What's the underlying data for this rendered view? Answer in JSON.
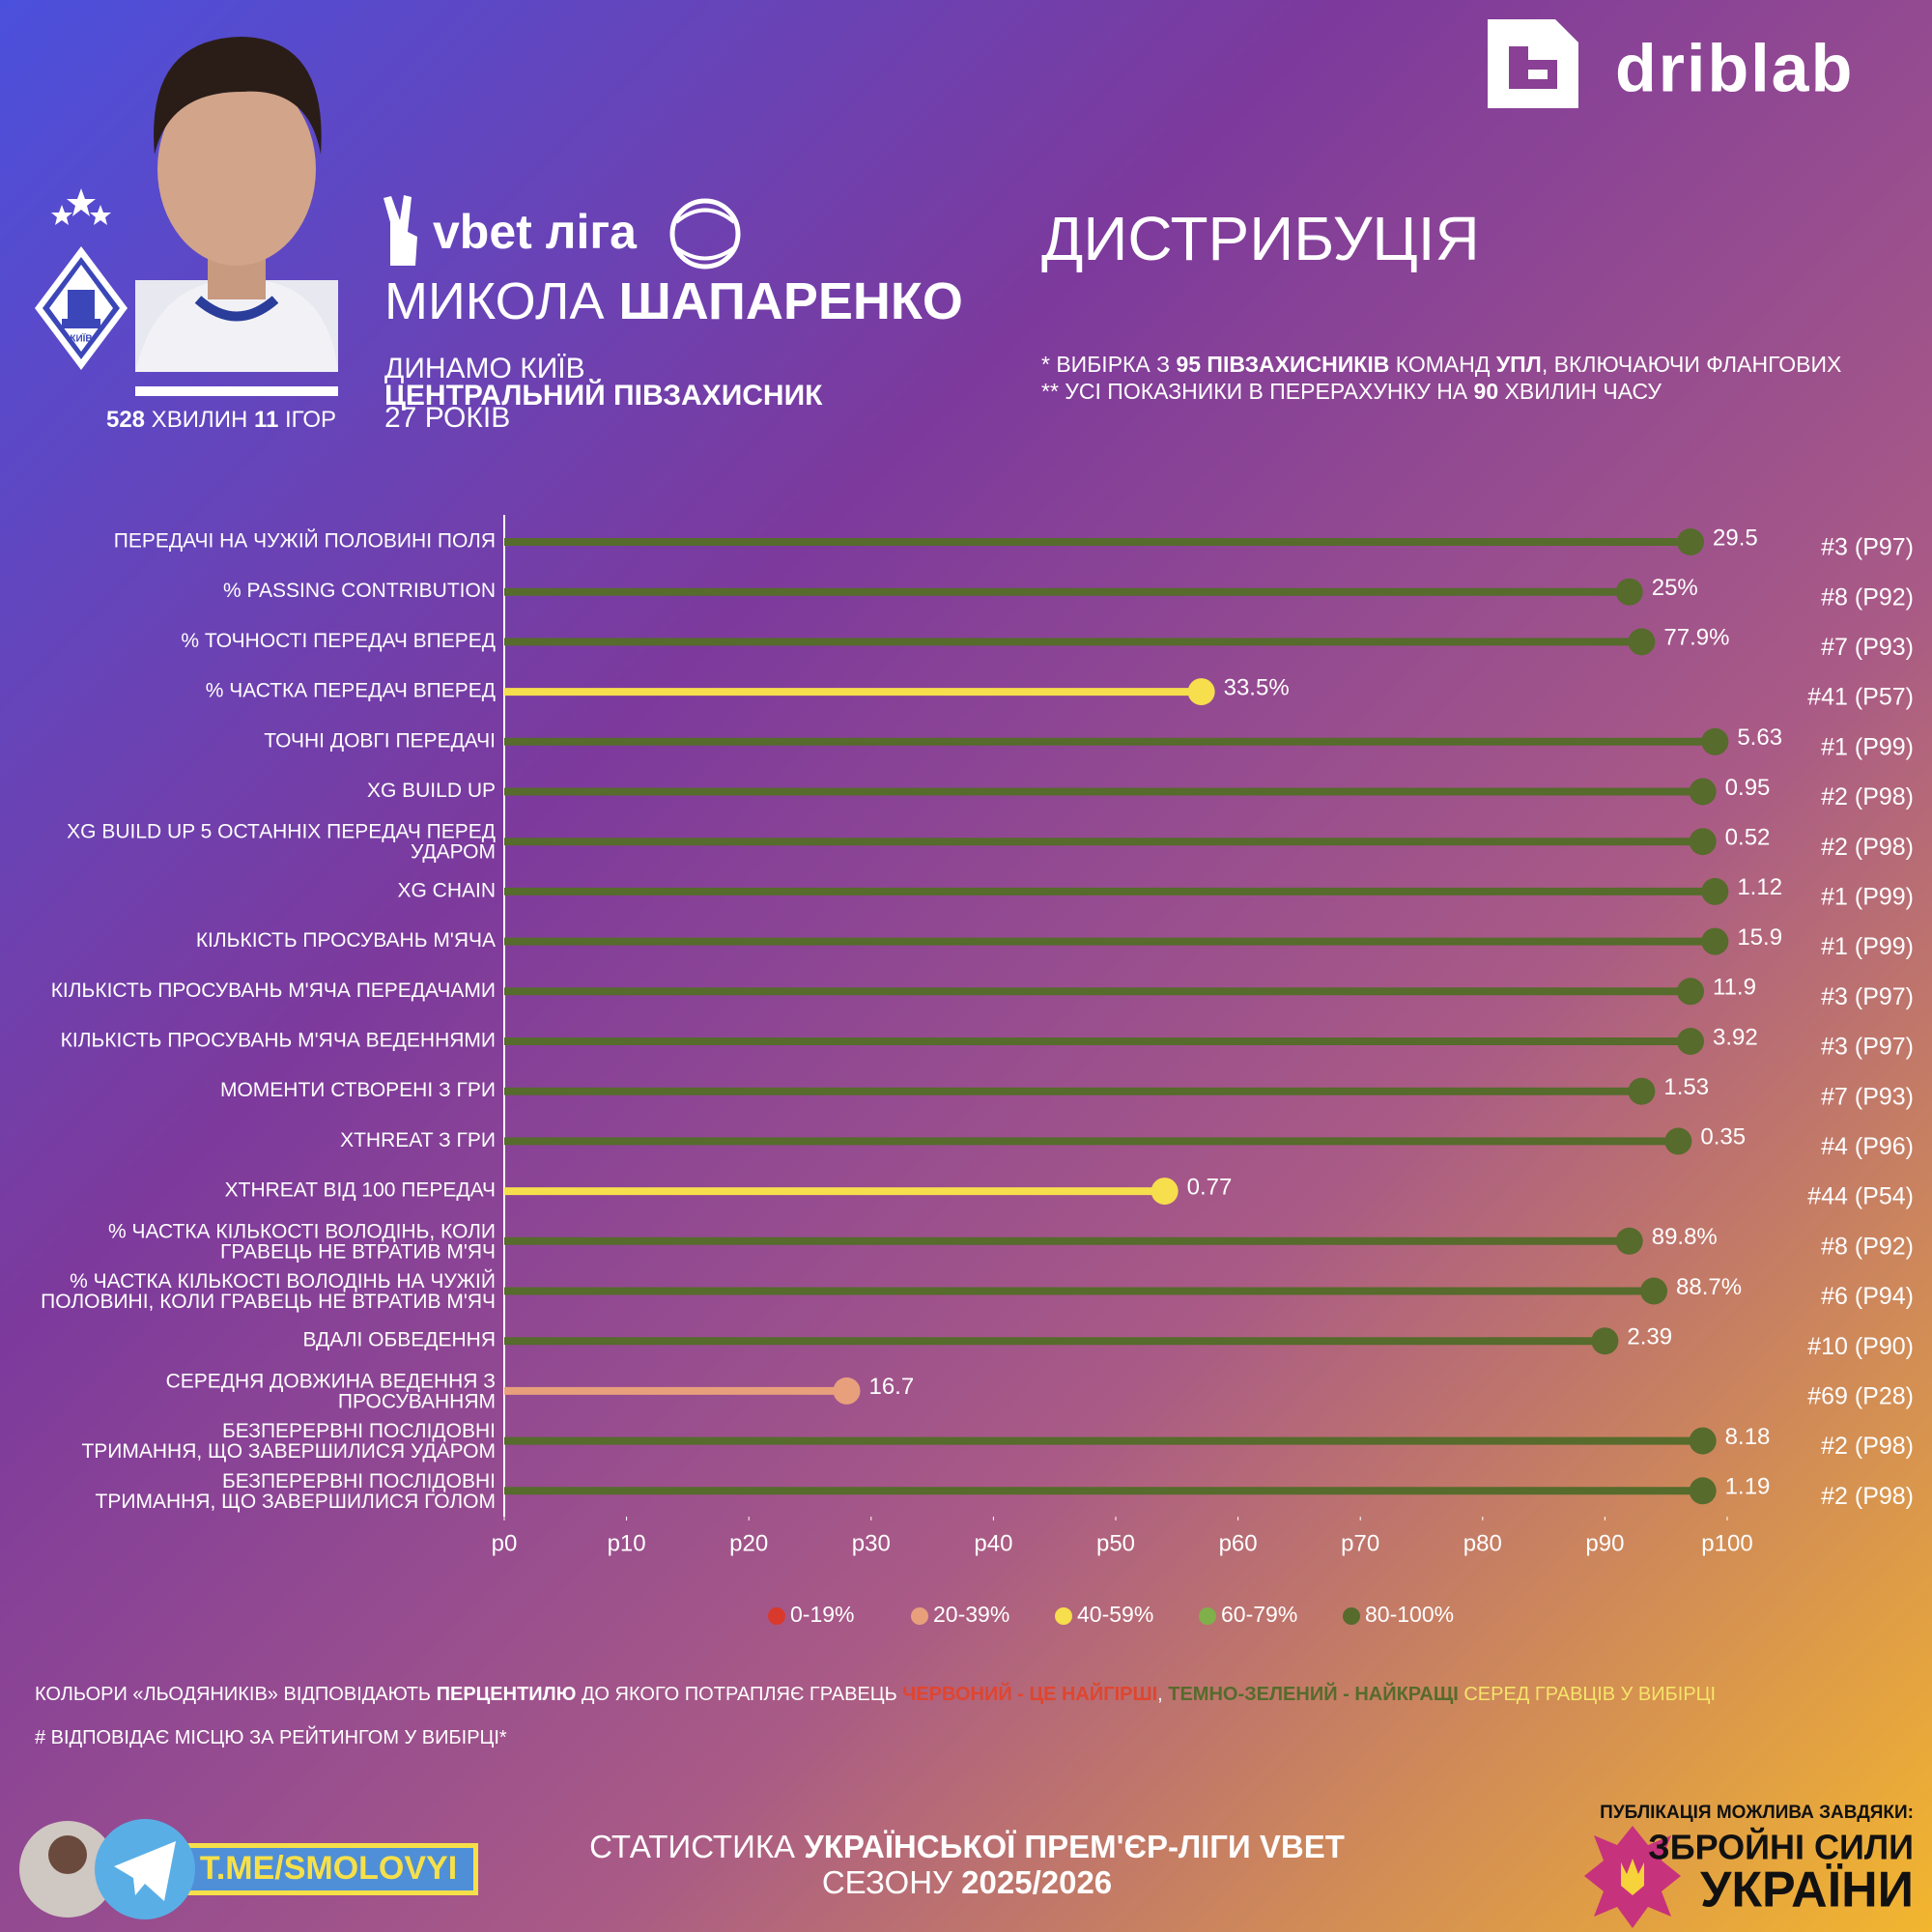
{
  "header": {
    "brand": "driblab",
    "league": "vbet ліга",
    "logo_text": "КИЇВ",
    "minutes": [
      {
        "text": "528",
        "bold": true
      },
      {
        "text": " ХВИЛИН "
      },
      {
        "text": "11",
        "bold": true
      },
      {
        "text": " ІГОР"
      }
    ],
    "player": [
      {
        "text": "МИКОЛА "
      },
      {
        "text": "ШАПАРЕНКО",
        "bold": true
      }
    ],
    "team": "ДИНАМО КИЇВ",
    "position": "ЦЕНТРАЛЬНИЙ ПІВЗАХИСНИК",
    "age": "27 РОКІВ",
    "section": "ДИСТРИБУЦІЯ",
    "notes": [
      [
        {
          "text": "* ВИБІРКА З "
        },
        {
          "text": "95 ПІВЗАХИСНИКІВ",
          "bold": true
        },
        {
          "text": " КОМАНД "
        },
        {
          "text": "УПЛ",
          "bold": true
        },
        {
          "text": ", ВКЛЮЧАЮЧИ ФЛАНГОВИХ"
        }
      ],
      [
        {
          "text": "** УСІ ПОКАЗНИКИ В ПЕРЕРАХУНКУ НА "
        },
        {
          "text": "90",
          "bold": true
        },
        {
          "text": " ХВИЛИН ЧАСУ"
        }
      ]
    ]
  },
  "chart_data": {
    "type": "lollipop",
    "categories": [
      [
        "ПЕРЕДАЧІ НА ЧУЖІЙ ПОЛОВИНІ ПОЛЯ"
      ],
      [
        "% PASSING CONTRIBUTION"
      ],
      [
        "% ТОЧНОСТІ ПЕРЕДАЧ ВПЕРЕД"
      ],
      [
        "% ЧАСТКА ПЕРЕДАЧ ВПЕРЕД"
      ],
      [
        "ТОЧНІ ДОВГІ ПЕРЕДАЧІ"
      ],
      [
        "XG BUILD UP"
      ],
      [
        "XG BUILD UP 5 ОСТАННІХ ПЕРЕДАЧ ПЕРЕД",
        "УДАРОМ"
      ],
      [
        "XG CHAIN"
      ],
      [
        "КІЛЬКІСТЬ ПРОСУВАНЬ М'ЯЧА"
      ],
      [
        "КІЛЬКІСТЬ ПРОСУВАНЬ М'ЯЧА ПЕРЕДАЧАМИ"
      ],
      [
        "КІЛЬКІСТЬ ПРОСУВАНЬ М'ЯЧА ВЕДЕННЯМИ"
      ],
      [
        "МОМЕНТИ СТВОРЕНІ З ГРИ"
      ],
      [
        "XTHREAT З ГРИ"
      ],
      [
        "XTHREAT ВІД 100 ПЕРЕДАЧ"
      ],
      [
        "% ЧАСТКА КІЛЬКОСТІ ВОЛОДІНЬ, КОЛИ",
        "ГРАВЕЦЬ НЕ ВТРАТИВ М'ЯЧ"
      ],
      [
        "% ЧАСТКА КІЛЬКОСТІ ВОЛОДІНЬ НА ЧУЖІЙ",
        "ПОЛОВИНІ, КОЛИ ГРАВЕЦЬ НЕ ВТРАТИВ М'ЯЧ"
      ],
      [
        "ВДАЛІ ОБВЕДЕННЯ"
      ],
      [
        "СЕРЕДНЯ ДОВЖИНА ВЕДЕННЯ З",
        "ПРОСУВАННЯМ"
      ],
      [
        "БЕЗПЕРЕРВНІ ПОСЛІДОВНІ",
        "ТРИМАННЯ, ЩО ЗАВЕРШИЛИСЯ УДАРОМ"
      ],
      [
        "БЕЗПЕРЕРВНІ ПОСЛІДОВНІ",
        "ТРИМАННЯ, ЩО ЗАВЕРШИЛИСЯ ГОЛОМ"
      ]
    ],
    "values": [
      97,
      92,
      93,
      57,
      99,
      98,
      98,
      99,
      99,
      97,
      97,
      93,
      96,
      54,
      92,
      94,
      90,
      28,
      98,
      98
    ],
    "stat_labels": [
      "29.5",
      "25%",
      "77.9%",
      "33.5%",
      "5.63",
      "0.95",
      "0.52",
      "1.12",
      "15.9",
      "11.9",
      "3.92",
      "1.53",
      "0.35",
      "0.77",
      "89.8%",
      "88.7%",
      "2.39",
      "16.7",
      "8.18",
      "1.19"
    ],
    "rank_labels": [
      "#3 (P97)",
      "#8 (P92)",
      "#7 (P93)",
      "#41 (P57)",
      "#1 (P99)",
      "#2 (P98)",
      "#2 (P98)",
      "#1 (P99)",
      "#1 (P99)",
      "#3 (P97)",
      "#3 (P97)",
      "#7 (P93)",
      "#4 (P96)",
      "#44 (P54)",
      "#8 (P92)",
      "#6 (P94)",
      "#10 (P90)",
      "#69 (P28)",
      "#2 (P98)",
      "#2 (P98)"
    ],
    "colors": [
      "#566b2c",
      "#566b2c",
      "#566b2c",
      "#f6de4c",
      "#566b2c",
      "#566b2c",
      "#566b2c",
      "#566b2c",
      "#566b2c",
      "#566b2c",
      "#566b2c",
      "#566b2c",
      "#566b2c",
      "#f6de4c",
      "#566b2c",
      "#566b2c",
      "#566b2c",
      "#e8a07c",
      "#566b2c",
      "#566b2c"
    ],
    "xlim": [
      0,
      100
    ],
    "xticks": [
      {
        "value": 0,
        "label": "p0"
      },
      {
        "value": 10,
        "label": "p10"
      },
      {
        "value": 20,
        "label": "p20"
      },
      {
        "value": 30,
        "label": "p30"
      },
      {
        "value": 40,
        "label": "p40"
      },
      {
        "value": 50,
        "label": "p50"
      },
      {
        "value": 60,
        "label": "p60"
      },
      {
        "value": 70,
        "label": "p70"
      },
      {
        "value": 80,
        "label": "p80"
      },
      {
        "value": 90,
        "label": "p90"
      },
      {
        "value": 100,
        "label": "p100"
      }
    ],
    "legend": [
      {
        "label": "0-19%",
        "color": "#d9392b"
      },
      {
        "label": "20-39%",
        "color": "#e8a07c"
      },
      {
        "label": "40-59%",
        "color": "#f6de4c"
      },
      {
        "label": "60-79%",
        "color": "#7fb04a"
      },
      {
        "label": "80-100%",
        "color": "#566b2c"
      }
    ]
  },
  "footer": {
    "explain": [
      [
        {
          "text": "КОЛЬОРИ «ЛЬОДЯНИКІВ» ВІДПОВІДАЮТЬ "
        },
        {
          "text": "ПЕРЦЕНТИЛЮ",
          "bold": true
        },
        {
          "text": " ДО ЯКОГО ПОТРАПЛЯЄ ГРАВЕЦЬ "
        },
        {
          "text": "ЧЕРВОНИЙ - ЦЕ НАЙГІРШІ",
          "bold": true,
          "color": "#e0452f"
        },
        {
          "text": ", "
        },
        {
          "text": "ТЕМНО-ЗЕЛЕНИЙ - НАЙКРАЩІ",
          "bold": true,
          "color": "#566b2c"
        },
        {
          "text": " СЕРЕД ГРАВЦІВ У ВИБІРЦІ",
          "color": "#f6e46a"
        }
      ],
      [
        {
          "text": "# ВІДПОВІДАЄ МІСЦЮ ЗА РЕЙТИНГОМ У ВИБІРЦІ*"
        }
      ]
    ],
    "telegram": "T.ME/SMOLOVYI",
    "stats_line1": [
      {
        "text": "СТАТИСТИКА "
      },
      {
        "text": "УКРАЇНСЬКОЇ ПРЕМ'ЄР-ЛІГИ VBET",
        "bold": true
      }
    ],
    "stats_line2": [
      {
        "text": "СЕЗОНУ "
      },
      {
        "text": "2025/2026",
        "bold": true
      }
    ],
    "thanks": "ПУБЛІКАЦІЯ МОЖЛИВА ЗАВДЯКИ:",
    "forces1": "ЗБРОЙНІ СИЛИ",
    "forces2": "УКРАЇНИ"
  }
}
